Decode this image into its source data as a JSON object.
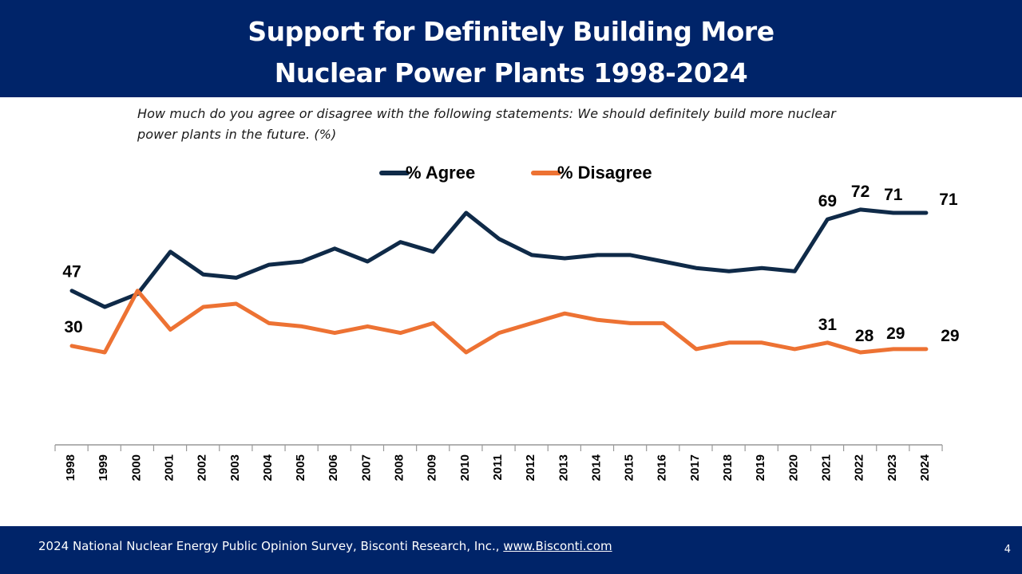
{
  "header": {
    "title_line1": "Support for Definitely Building More",
    "title_line2": "Nuclear Power Plants 1998-2024",
    "background": "#002469"
  },
  "question": "How much do you agree or disagree with the following statements: We should definitely build more nuclear power plants in the future. (%)",
  "chart_data": {
    "type": "line",
    "x": [
      1998,
      1999,
      2000,
      2001,
      2002,
      2003,
      2004,
      2005,
      2006,
      2007,
      2008,
      2009,
      2010,
      2011,
      2012,
      2013,
      2014,
      2015,
      2016,
      2017,
      2018,
      2019,
      2020,
      2021,
      2022,
      2023,
      2024
    ],
    "series": [
      {
        "name": "% Agree",
        "color": "#0f2a48",
        "values": [
          47,
          42,
          46,
          59,
          52,
          51,
          55,
          56,
          60,
          56,
          62,
          59,
          71,
          63,
          58,
          57,
          58,
          58,
          56,
          54,
          53,
          54,
          53,
          69,
          72,
          71,
          71
        ],
        "labels": {
          "1998": "47",
          "2021": "69",
          "2022": "72",
          "2023": "71",
          "2024": "71"
        }
      },
      {
        "name": "% Disagree",
        "color": "#ed7233",
        "values": [
          30,
          28,
          47,
          35,
          42,
          43,
          37,
          36,
          34,
          36,
          34,
          37,
          28,
          34,
          37,
          40,
          38,
          37,
          37,
          29,
          31,
          31,
          29,
          31,
          28,
          29,
          29
        ],
        "labels": {
          "1998": "30",
          "2021": "31",
          "2022": "28",
          "2023": "29",
          "2024": "29"
        }
      }
    ],
    "ylim": [
      0,
      80
    ],
    "grid": false,
    "legend": "top-center"
  },
  "footer": {
    "source_text": "2024 National Nuclear Energy Public Opinion Survey, Bisconti Research, Inc., ",
    "source_link": "www.Bisconti.com",
    "page_number": "4"
  }
}
